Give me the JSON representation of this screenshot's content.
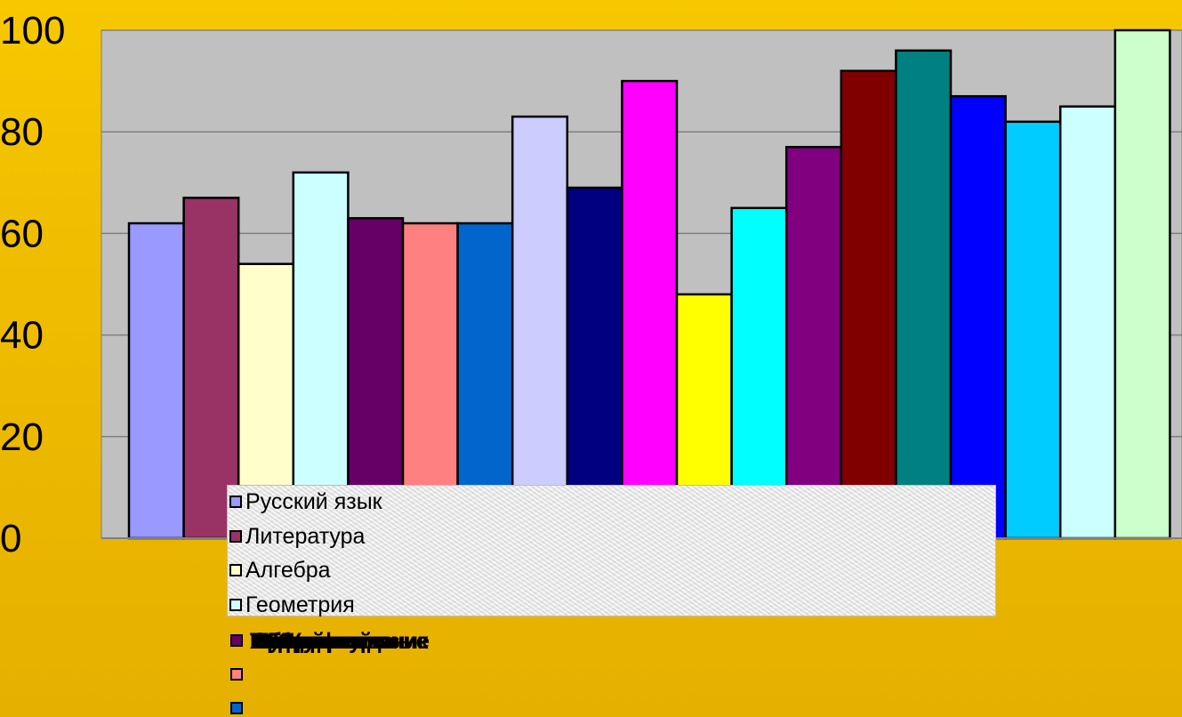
{
  "chart_data": {
    "type": "bar",
    "y_ticks": [
      "0",
      "20",
      "40",
      "60",
      "80",
      "100"
    ],
    "ylim": [
      0,
      100
    ],
    "grid": true,
    "legend_position": "bottom-left overlay",
    "series": [
      {
        "name": "Русский язык",
        "value": 62,
        "color": "#9999ff"
      },
      {
        "name": "Литература",
        "value": 67,
        "color": "#993366"
      },
      {
        "name": "Алгебра",
        "value": 54,
        "color": "#ffffcc"
      },
      {
        "name": "Геометрия",
        "value": 72,
        "color": "#ccffff"
      },
      {
        "name": "",
        "value": 63,
        "color": "#660066"
      },
      {
        "name": "",
        "value": 62,
        "color": "#ff8080"
      },
      {
        "name": "",
        "value": 62,
        "color": "#0066cc"
      },
      {
        "name": "",
        "value": 83,
        "color": "#ccccff"
      },
      {
        "name": "",
        "value": 69,
        "color": "#000080"
      },
      {
        "name": "",
        "value": 90,
        "color": "#ff00ff"
      },
      {
        "name": "",
        "value": 48,
        "color": "#ffff00"
      },
      {
        "name": "",
        "value": 65,
        "color": "#00ffff"
      },
      {
        "name": "",
        "value": 77,
        "color": "#800080"
      },
      {
        "name": "",
        "value": 92,
        "color": "#800000"
      },
      {
        "name": "",
        "value": 96,
        "color": "#008080"
      },
      {
        "name": "",
        "value": 87,
        "color": "#0000ff"
      },
      {
        "name": "",
        "value": 82,
        "color": "#00ccff"
      },
      {
        "name": "",
        "value": 85,
        "color": "#ccffff"
      },
      {
        "name": "",
        "value": 100,
        "color": "#ccffcc"
      }
    ]
  },
  "legend": {
    "visible_items": [
      {
        "label": "Русский язык",
        "color": "#9999ff"
      },
      {
        "label": "Литература",
        "color": "#993366"
      },
      {
        "label": "Алгебра",
        "color": "#ffffcc"
      },
      {
        "label": "Геометрия",
        "color": "#ccffff"
      }
    ],
    "overlapping_text": [
      "ИЗО",
      "Музыка",
      "Физика",
      "Химия",
      "Биология",
      "География",
      "История",
      "ОБЖ",
      "Физкультура",
      "Английский язык",
      "Информатика",
      "Обществознание",
      "Технология",
      "Черчение",
      "Природоведение"
    ],
    "extra_swatches": [
      "#660066",
      "#ff8080",
      "#0066cc"
    ]
  },
  "colors": {
    "plot_bg": "#c0c0c0",
    "grid": "#808080",
    "axis": "#808080",
    "page_bg": "#f0bf00"
  }
}
